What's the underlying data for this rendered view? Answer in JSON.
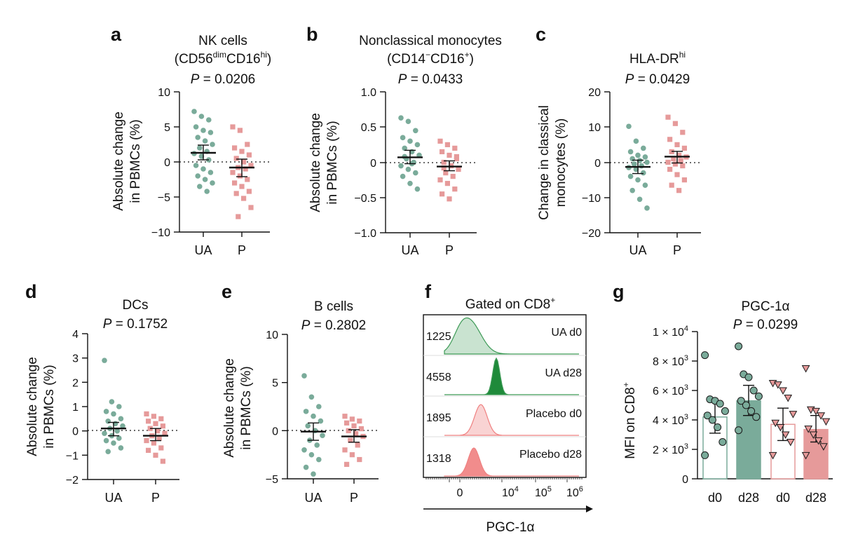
{
  "colors": {
    "ua": "#7aab9a",
    "placebo": "#e69a9a",
    "ua_dark": "#3d9a56",
    "ua_fill": "#1f8a3a",
    "placebo_light": "#f6d0d0",
    "placebo_fill": "#ef8080",
    "bar_d28_ua": "#7aab9a",
    "bar_d28_p": "#e69a9a"
  },
  "panels": {
    "a": {
      "label": "a",
      "title": [
        "NK cells",
        "(CD56^dim CD16^hi)"
      ],
      "p_prefix": "P",
      "p_value": "= 0.0206",
      "ylabel": [
        "Absolute change",
        "in PBMCs (%)"
      ],
      "ticks": [
        "10",
        "5",
        "0",
        "−5",
        "−10"
      ]
    },
    "b": {
      "label": "b",
      "title": [
        "Nonclassical monocytes",
        "(CD14^− CD16^+)"
      ],
      "p_prefix": "P",
      "p_value": "= 0.0433",
      "ylabel": [
        "Absolute change",
        "in PBMCs (%)"
      ],
      "ticks": [
        "1.0",
        "0.5",
        "0",
        "−0.5",
        "−1.0"
      ]
    },
    "c": {
      "label": "c",
      "title": [
        "HLA-DR^hi"
      ],
      "p_prefix": "P",
      "p_value": "= 0.0429",
      "ylabel": [
        "Change in classical",
        "monocytes (%)"
      ],
      "ticks": [
        "20",
        "10",
        "0",
        "−10",
        "−20"
      ]
    },
    "d": {
      "label": "d",
      "title": [
        "DCs"
      ],
      "p_prefix": "P",
      "p_value": "= 0.1752",
      "ylabel": [
        "Absolute change",
        "in PBMCs (%)"
      ],
      "ticks": [
        "4",
        "3",
        "2",
        "1",
        "0",
        "−1",
        "−2"
      ]
    },
    "e": {
      "label": "e",
      "title": [
        "B cells"
      ],
      "p_prefix": "P",
      "p_value": "= 0.2802",
      "ylabel": [
        "Absolute change",
        "in PBMCs (%)"
      ],
      "ticks": [
        "10",
        "5",
        "0",
        "−5"
      ]
    },
    "f": {
      "label": "f",
      "title": "Gated on CD8",
      "title_sup": "+",
      "xlabel": "PGC-1α",
      "x_ticks": [
        "0",
        "10^4",
        "10^5",
        "10^6"
      ],
      "tracks": [
        {
          "value": "1225",
          "label": "UA d0"
        },
        {
          "value": "4558",
          "label": "UA d28"
        },
        {
          "value": "1895",
          "label": "Placebo d0"
        },
        {
          "value": "1318",
          "label": "Placebo d28"
        }
      ]
    },
    "g": {
      "label": "g",
      "title": "PGC-1α",
      "p_prefix": "P",
      "p_value": "= 0.0299",
      "ylabel": "MFI on CD8",
      "ylabel_sup": "+",
      "ticks": [
        "1 × 10^4",
        "8 × 10^3",
        "6 × 10^3",
        "4 × 10^3",
        "2 × 10^3",
        "0"
      ],
      "categories": [
        "d0",
        "d28",
        "d0",
        "d28"
      ]
    }
  },
  "categories": [
    "UA",
    "P"
  ],
  "chart_data": [
    {
      "type": "scatter",
      "panel": "a",
      "title": "NK cells (CD56dim CD16hi)",
      "ylabel": "Absolute change in PBMCs (%)",
      "ylim": [
        -10,
        10
      ],
      "groups": [
        {
          "name": "UA",
          "mean": 1.3,
          "ci": [
            0.3,
            2.4
          ],
          "values": [
            7.2,
            6.5,
            6.0,
            5.0,
            4.5,
            4.2,
            3.5,
            3.0,
            2.5,
            2.0,
            1.5,
            1.2,
            0.8,
            0.3,
            -0.5,
            -1.0,
            -1.5,
            -2.0,
            -2.5,
            -3.0,
            -3.5,
            -4.2
          ]
        },
        {
          "name": "P",
          "mean": -0.8,
          "ci": [
            -2.1,
            0.4
          ],
          "values": [
            5.0,
            4.5,
            2.5,
            2.0,
            1.5,
            1.0,
            0.5,
            0.0,
            -0.5,
            -0.8,
            -1.0,
            -1.5,
            -2.0,
            -2.5,
            -3.0,
            -3.5,
            -4.2,
            -4.5,
            -5.2,
            -6.5,
            -7.8
          ]
        }
      ]
    },
    {
      "type": "scatter",
      "panel": "b",
      "title": "Nonclassical monocytes (CD14− CD16+)",
      "ylabel": "Absolute change in PBMCs (%)",
      "ylim": [
        -1.0,
        1.0
      ],
      "groups": [
        {
          "name": "UA",
          "mean": 0.07,
          "ci": [
            -0.02,
            0.17
          ],
          "values": [
            0.63,
            0.58,
            0.45,
            0.35,
            0.3,
            0.25,
            0.2,
            0.15,
            0.1,
            0.05,
            0.0,
            -0.05,
            -0.1,
            -0.15,
            -0.2,
            -0.3,
            -0.38,
            0.08,
            -0.02
          ]
        },
        {
          "name": "P",
          "mean": -0.06,
          "ci": [
            -0.12,
            0.02
          ],
          "values": [
            0.3,
            0.25,
            0.2,
            0.15,
            0.1,
            0.05,
            0.0,
            -0.05,
            -0.1,
            -0.15,
            -0.2,
            -0.25,
            -0.3,
            -0.38,
            -0.45,
            -0.52,
            0.08,
            -0.08
          ]
        }
      ]
    },
    {
      "type": "scatter",
      "panel": "c",
      "title": "HLA-DRhi",
      "ylabel": "Change in classical monocytes (%)",
      "ylim": [
        -20,
        20
      ],
      "groups": [
        {
          "name": "UA",
          "mean": -1.3,
          "ci": [
            -3.2,
            0.6
          ],
          "values": [
            10.2,
            6.0,
            4.0,
            3.0,
            2.0,
            1.5,
            1.0,
            0.5,
            0.0,
            -0.5,
            -1.0,
            -1.5,
            -2.0,
            -3.0,
            -4.0,
            -5.0,
            -6.5,
            -8.0,
            -10.5,
            -13.0
          ]
        },
        {
          "name": "P",
          "mean": 1.6,
          "ci": [
            -0.2,
            3.1
          ],
          "values": [
            12.8,
            11.0,
            8.5,
            6.5,
            5.0,
            4.0,
            3.0,
            2.0,
            1.5,
            1.0,
            0.5,
            0.0,
            -0.5,
            -1.0,
            -2.0,
            -3.5,
            -5.0,
            -6.5,
            -8.0
          ]
        }
      ]
    },
    {
      "type": "scatter",
      "panel": "d",
      "title": "DCs",
      "ylabel": "Absolute change in PBMCs (%)",
      "ylim": [
        -2,
        4
      ],
      "groups": [
        {
          "name": "UA",
          "mean": 0.1,
          "ci": [
            -0.2,
            0.35
          ],
          "values": [
            2.9,
            1.2,
            1.0,
            0.8,
            0.7,
            0.5,
            0.4,
            0.3,
            0.2,
            0.1,
            0.0,
            -0.1,
            -0.2,
            -0.3,
            -0.4,
            -0.5,
            -0.7,
            -0.85
          ]
        },
        {
          "name": "P",
          "mean": -0.2,
          "ci": [
            -0.4,
            0.1
          ],
          "values": [
            0.7,
            0.6,
            0.5,
            0.4,
            0.3,
            0.2,
            0.1,
            0.0,
            -0.1,
            -0.2,
            -0.3,
            -0.4,
            -0.5,
            -0.7,
            -0.8,
            -1.0,
            -1.25
          ]
        }
      ]
    },
    {
      "type": "scatter",
      "panel": "e",
      "title": "B cells",
      "ylabel": "Absolute change in PBMCs (%)",
      "ylim": [
        -5,
        10
      ],
      "groups": [
        {
          "name": "UA",
          "mean": -0.1,
          "ci": [
            -1.0,
            0.8
          ],
          "values": [
            5.7,
            3.5,
            2.5,
            2.0,
            1.5,
            1.0,
            0.5,
            0.0,
            -0.5,
            -1.0,
            -1.5,
            -2.0,
            -2.5,
            -3.0,
            -3.8,
            -4.5
          ]
        },
        {
          "name": "P",
          "mean": -0.6,
          "ci": [
            -1.2,
            0.1
          ],
          "values": [
            1.5,
            1.2,
            1.0,
            0.8,
            0.5,
            0.2,
            0.0,
            -0.3,
            -0.6,
            -1.0,
            -1.5,
            -2.0,
            -2.5,
            -3.0,
            -3.5
          ]
        }
      ]
    },
    {
      "type": "histogram",
      "panel": "f",
      "title": "Gated on CD8+",
      "xlabel": "PGC-1α",
      "tracks": [
        {
          "name": "UA d0",
          "mfi": 1225
        },
        {
          "name": "UA d28",
          "mfi": 4558
        },
        {
          "name": "Placebo d0",
          "mfi": 1895
        },
        {
          "name": "Placebo d28",
          "mfi": 1318
        }
      ]
    },
    {
      "type": "bar",
      "panel": "g",
      "title": "PGC-1α",
      "ylabel": "MFI on CD8+",
      "ylim": [
        0,
        10000
      ],
      "categories": [
        "d0",
        "d28",
        "d0",
        "d28"
      ],
      "groups": [
        "UA",
        "UA",
        "Placebo",
        "Placebo"
      ],
      "means": [
        4200,
        5300,
        3700,
        3350
      ],
      "errors": [
        [
          3100,
          5300
        ],
        [
          4300,
          6350
        ],
        [
          2600,
          4800
        ],
        [
          2500,
          4300
        ]
      ],
      "points": [
        [
          8400,
          5400,
          5300,
          5100,
          4600,
          4300,
          4000,
          3500,
          2500,
          1600
        ],
        [
          9000,
          7100,
          6900,
          6000,
          5600,
          5300,
          5000,
          4600,
          4200,
          3300
        ],
        [
          6500,
          6400,
          6000,
          5500,
          4400,
          3800,
          3500,
          3000,
          2500,
          1600
        ],
        [
          7500,
          4700,
          4600,
          4300,
          3900,
          3400,
          3000,
          2600,
          2200,
          1600
        ]
      ]
    }
  ]
}
